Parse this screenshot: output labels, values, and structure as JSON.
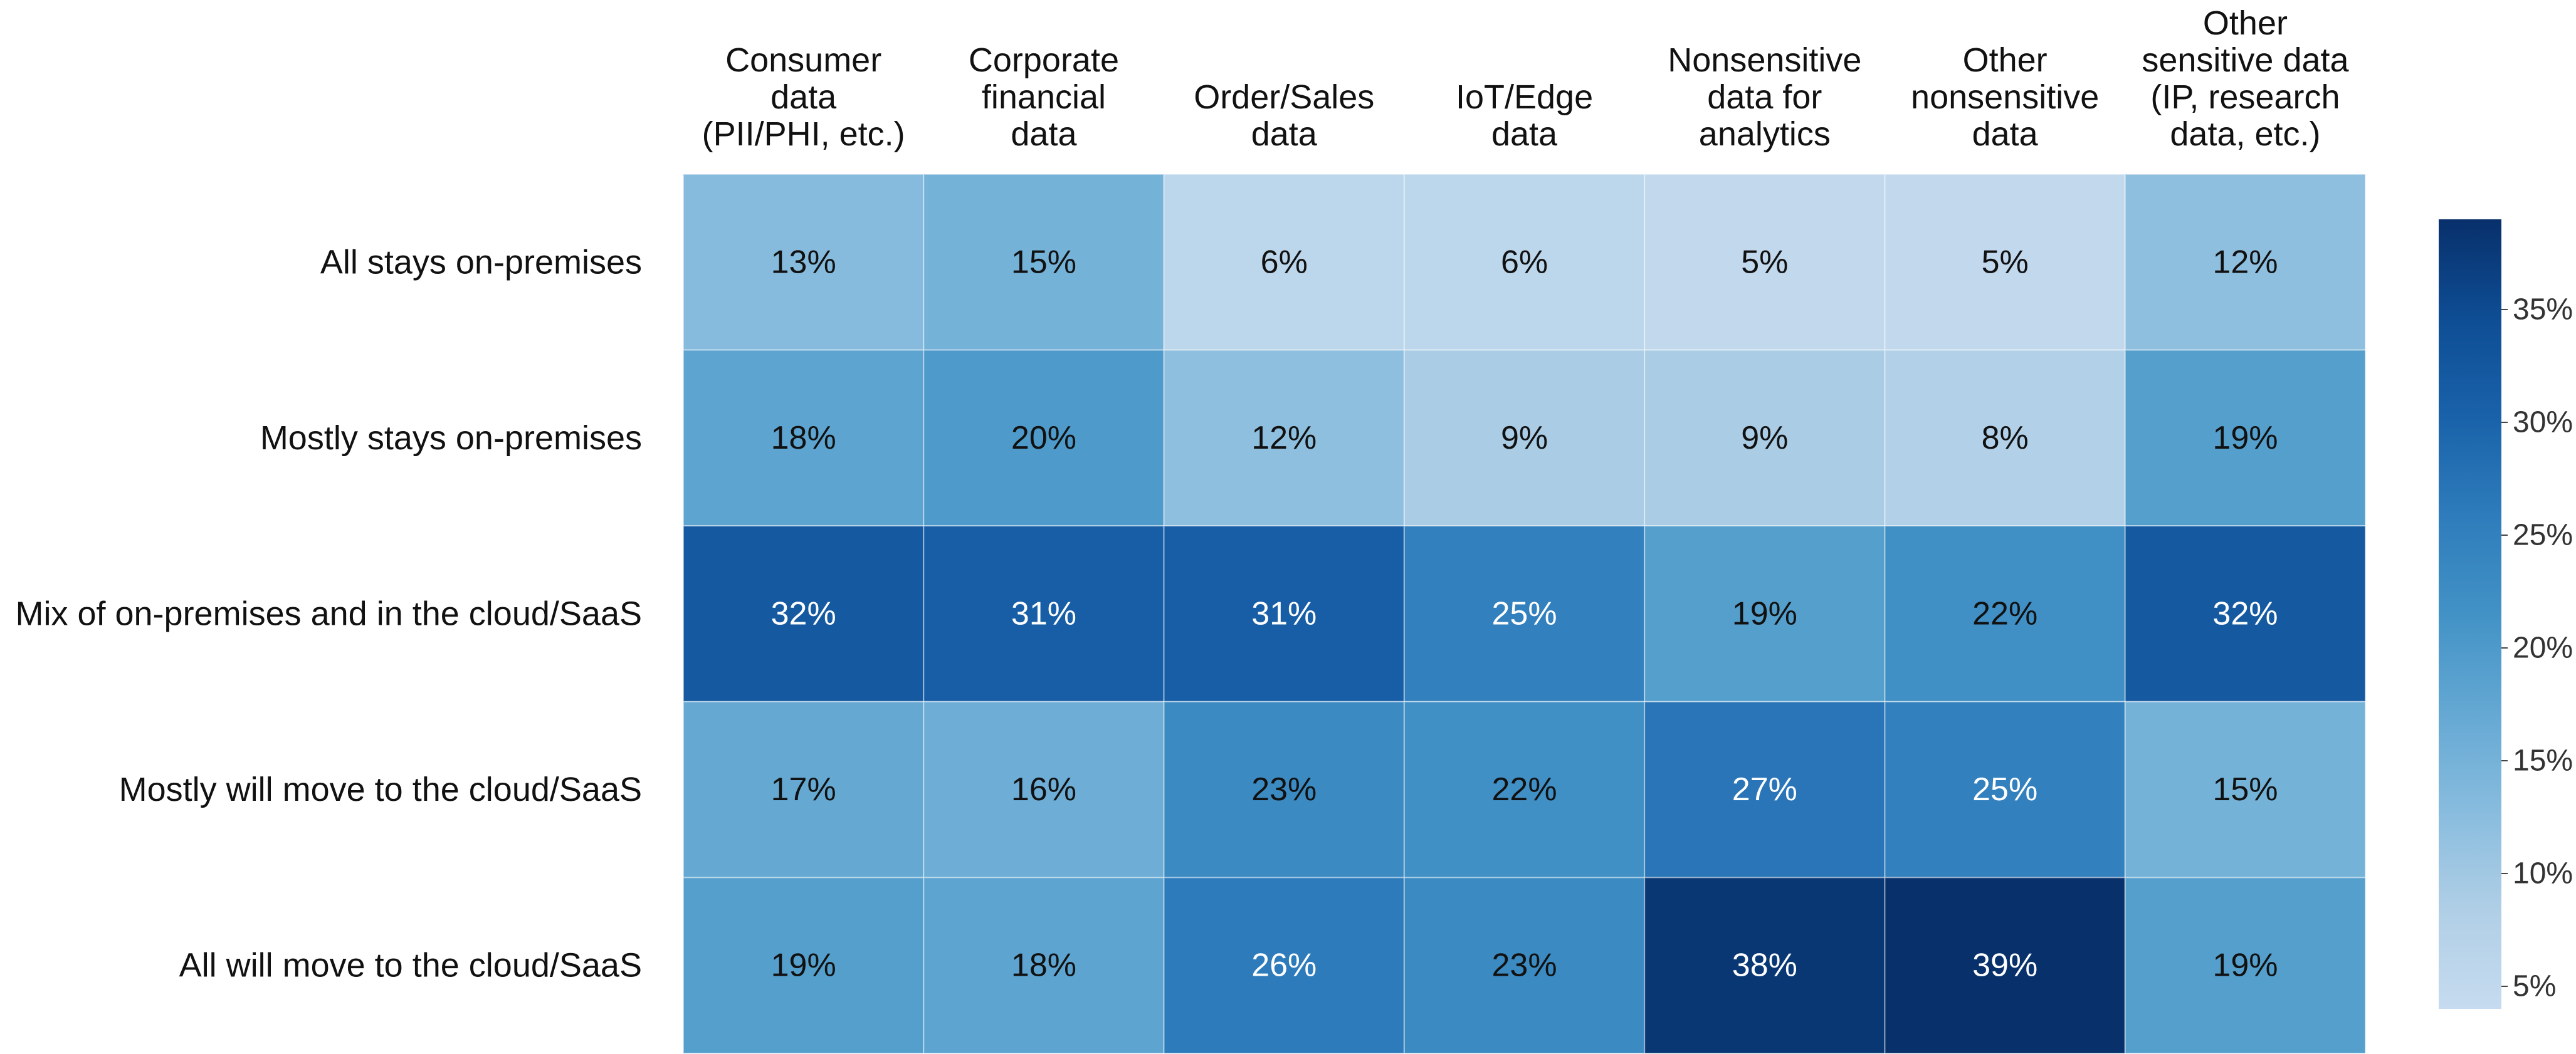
{
  "chart_data": {
    "type": "heatmap",
    "title": "",
    "columns": [
      "Consumer data (PII/PHI, etc.)",
      "Corporate financial data",
      "Order/Sales data",
      "IoT/Edge data",
      "Nonsensitive data for analytics",
      "Other nonsensitive data",
      "Other sensitive data (IP, research data, etc.)"
    ],
    "column_label_lines": [
      [
        "Consumer",
        "data",
        "(PII/PHI, etc.)"
      ],
      [
        "Corporate",
        "financial",
        "data"
      ],
      [
        "Order/Sales",
        "data"
      ],
      [
        "IoT/Edge",
        "data"
      ],
      [
        "Nonsensitive",
        "data for",
        "analytics"
      ],
      [
        "Other",
        "nonsensitive",
        "data"
      ],
      [
        "Other",
        "sensitive data",
        "(IP, research",
        "data, etc.)"
      ]
    ],
    "rows": [
      "All stays on-premises",
      "Mostly stays on-premises",
      "Mix of on-premises and in the cloud/SaaS",
      "Mostly will move to the cloud/SaaS",
      "All will move to the cloud/SaaS"
    ],
    "values": [
      [
        13,
        15,
        6,
        6,
        5,
        5,
        12
      ],
      [
        18,
        20,
        12,
        9,
        9,
        8,
        19
      ],
      [
        32,
        31,
        31,
        25,
        19,
        22,
        32
      ],
      [
        17,
        16,
        23,
        22,
        27,
        25,
        15
      ],
      [
        19,
        18,
        26,
        23,
        38,
        39,
        19
      ]
    ],
    "value_suffix": "%",
    "colorbar": {
      "min": 4,
      "max": 39,
      "ticks": [
        5,
        10,
        15,
        20,
        25,
        30,
        35
      ],
      "tick_labels": [
        "5%",
        "10%",
        "15%",
        "20%",
        "25%",
        "30%",
        "35%"
      ],
      "position": "right"
    },
    "colormap": "Blues",
    "text_color_dark": "#111111",
    "text_color_light": "#ffffff"
  }
}
